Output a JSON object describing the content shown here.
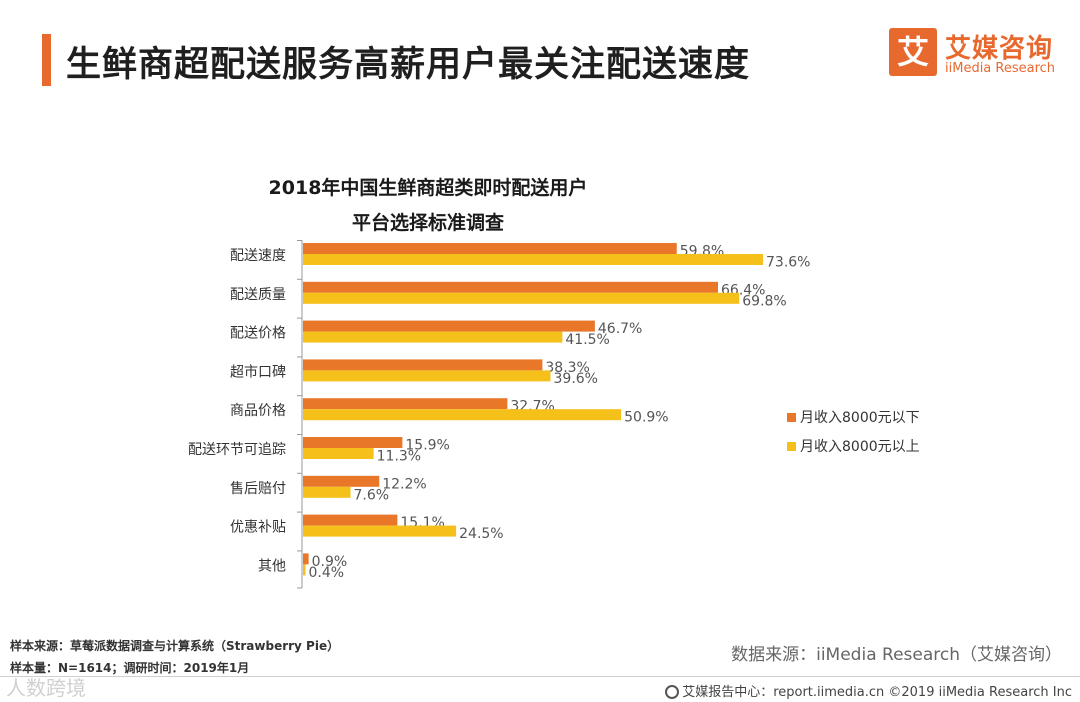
{
  "page_title": "生鲜商超配送服务高薪用户最关注配送速度",
  "logo": {
    "cn": "艾媒咨询",
    "en": "iiMedia Research",
    "mark": "艾"
  },
  "colors": {
    "series1": "#e8772a",
    "series2": "#f5c01a",
    "accent": "#e8692e"
  },
  "chart_data": {
    "type": "bar",
    "orientation": "horizontal",
    "title": "2018年中国生鲜商超类即时配送用户平台选择标准调查",
    "title_lines": [
      "2018年中国生鲜商超类即时配送用户",
      "平台选择标准调查"
    ],
    "categories": [
      "配送速度",
      "配送质量",
      "配送价格",
      "超市口碑",
      "商品价格",
      "配送环节可追踪",
      "售后赔付",
      "优惠补贴",
      "其他"
    ],
    "series": [
      {
        "name": "月收入8000元以下",
        "values": [
          59.8,
          66.4,
          46.7,
          38.3,
          32.7,
          15.9,
          12.2,
          15.1,
          0.9
        ],
        "labels": [
          "59.8%",
          "66.4%",
          "46.7%",
          "38.3%",
          "32.7%",
          "15.9%",
          "12.2%",
          "15.1%",
          "0.9%"
        ]
      },
      {
        "name": "月收入8000元以上",
        "values": [
          73.6,
          69.8,
          41.5,
          39.6,
          50.9,
          11.3,
          7.6,
          24.5,
          0.4
        ],
        "labels": [
          "73.6%",
          "69.8%",
          "41.5%",
          "39.6%",
          "50.9%",
          "11.3%",
          "7.6%",
          "24.5%",
          "0.4%"
        ]
      }
    ],
    "value_unit": "%",
    "xlim": [
      0,
      80
    ],
    "legend_position": "right",
    "grid": false
  },
  "legend": {
    "item1": "月收入8000元以下",
    "item2": "月收入8000元以上"
  },
  "footnotes": {
    "sample_source": "样本来源：草莓派数据调查与计算系统（Strawberry Pie）",
    "sample_size": "样本量：N=1614；调研时间：2019年1月"
  },
  "data_source": "数据来源：iiMedia Research（艾媒咨询）",
  "footer": "艾媒报告中心：report.iimedia.cn  ©2019  iiMedia Research Inc",
  "watermark": "人数跨境"
}
